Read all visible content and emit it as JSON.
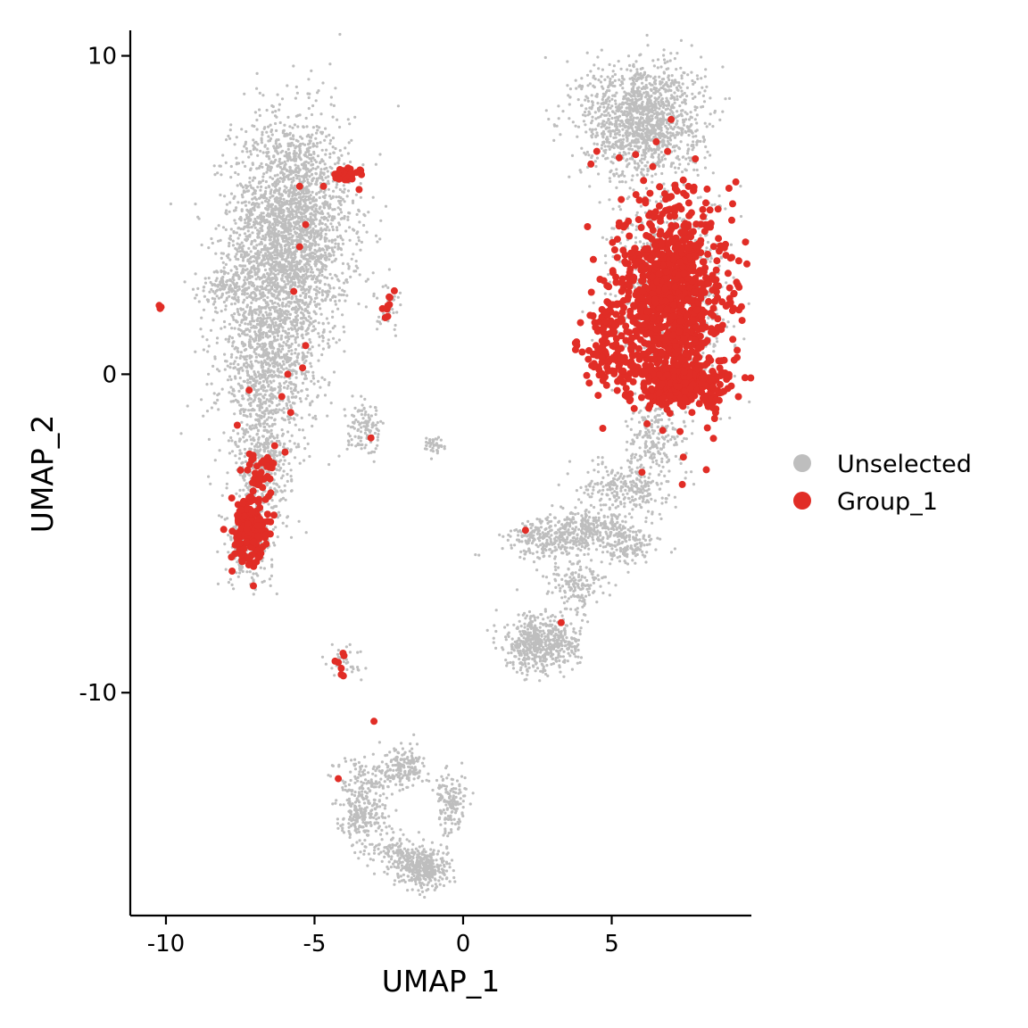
{
  "chart_data": {
    "type": "scatter",
    "xlabel": "UMAP_1",
    "ylabel": "UMAP_2",
    "xlim": [
      -11.2,
      9.7
    ],
    "ylim": [
      -17.0,
      10.8
    ],
    "xticks": [
      -10,
      -5,
      0,
      5
    ],
    "xtick_labels": [
      "-10",
      "-5",
      "0",
      "5"
    ],
    "yticks": [
      10,
      0,
      -10
    ],
    "ytick_labels": [
      "10",
      "0",
      "-10"
    ],
    "grid": false,
    "legend_position": "right",
    "series": [
      {
        "name": "Unselected",
        "color": "#BEBEBE",
        "clusters": [
          {
            "cx": -5.8,
            "cy": 4.5,
            "sx": 1.0,
            "sy": 1.8,
            "n": 2600
          },
          {
            "cx": -6.6,
            "cy": 0.5,
            "sx": 0.8,
            "sy": 1.6,
            "n": 1100
          },
          {
            "cx": -6.8,
            "cy": -3.0,
            "sx": 0.5,
            "sy": 1.2,
            "n": 400
          },
          {
            "cx": -7.2,
            "cy": -5.4,
            "sx": 0.4,
            "sy": 0.6,
            "n": 200
          },
          {
            "cx": -7.9,
            "cy": 2.8,
            "sx": 0.5,
            "sy": 0.3,
            "n": 120
          },
          {
            "cx": 6.0,
            "cy": 8.0,
            "sx": 1.0,
            "sy": 0.9,
            "n": 1400
          },
          {
            "cx": 7.0,
            "cy": 2.5,
            "sx": 1.0,
            "sy": 1.6,
            "n": 800
          },
          {
            "cx": 6.5,
            "cy": -2.0,
            "sx": 0.5,
            "sy": 0.6,
            "n": 200
          },
          {
            "cx": 5.5,
            "cy": -3.5,
            "sx": 0.7,
            "sy": 0.4,
            "n": 250
          },
          {
            "cx": 4.4,
            "cy": -4.8,
            "sx": 0.9,
            "sy": 0.3,
            "n": 300
          },
          {
            "cx": 3.0,
            "cy": -5.2,
            "sx": 0.8,
            "sy": 0.3,
            "n": 250
          },
          {
            "cx": 5.6,
            "cy": -5.5,
            "sx": 0.5,
            "sy": 0.25,
            "n": 120
          },
          {
            "cx": 3.8,
            "cy": -6.6,
            "sx": 0.5,
            "sy": 0.4,
            "n": 150
          },
          {
            "cx": 2.4,
            "cy": -8.5,
            "sx": 0.5,
            "sy": 0.45,
            "n": 450
          },
          {
            "cx": 3.5,
            "cy": -8.5,
            "sx": 0.4,
            "sy": 0.3,
            "n": 100
          },
          {
            "cx": -3.3,
            "cy": -1.8,
            "sx": 0.3,
            "sy": 0.4,
            "n": 120
          },
          {
            "cx": -2.5,
            "cy": 2.2,
            "sx": 0.2,
            "sy": 0.4,
            "n": 40
          },
          {
            "cx": -1.0,
            "cy": -2.2,
            "sx": 0.2,
            "sy": 0.15,
            "n": 40
          },
          {
            "cx": -2.8,
            "cy": -12.5,
            "sx": 0.8,
            "sy": 0.3,
            "n": 150
          },
          {
            "cx": -1.9,
            "cy": -12.3,
            "sx": 0.3,
            "sy": 0.3,
            "n": 100
          },
          {
            "cx": -3.4,
            "cy": -13.8,
            "sx": 0.4,
            "sy": 0.5,
            "n": 250
          },
          {
            "cx": -1.3,
            "cy": -15.5,
            "sx": 0.4,
            "sy": 0.3,
            "n": 350
          },
          {
            "cx": -0.4,
            "cy": -13.5,
            "sx": 0.25,
            "sy": 0.5,
            "n": 150
          },
          {
            "cx": -2.2,
            "cy": -15.0,
            "sx": 0.5,
            "sy": 0.3,
            "n": 120
          },
          {
            "cx": -4.0,
            "cy": -9.0,
            "sx": 0.3,
            "sy": 0.3,
            "n": 40
          }
        ]
      },
      {
        "name": "Group_1",
        "color": "#E12D26",
        "clusters": [
          {
            "cx": 7.0,
            "cy": 2.5,
            "sx": 0.9,
            "sy": 1.5,
            "n": 950
          },
          {
            "cx": 7.4,
            "cy": -0.3,
            "sx": 0.9,
            "sy": 0.35,
            "n": 300
          },
          {
            "cx": 5.0,
            "cy": 0.5,
            "sx": 0.5,
            "sy": 0.5,
            "n": 90
          },
          {
            "cx": 4.8,
            "cy": 1.6,
            "sx": 0.4,
            "sy": 0.3,
            "n": 40
          },
          {
            "cx": -7.2,
            "cy": -4.9,
            "sx": 0.3,
            "sy": 0.6,
            "n": 180
          },
          {
            "cx": -6.8,
            "cy": -3.0,
            "sx": 0.3,
            "sy": 0.4,
            "n": 35
          },
          {
            "cx": -3.9,
            "cy": 6.3,
            "sx": 0.2,
            "sy": 0.1,
            "n": 30
          },
          {
            "cx": -2.5,
            "cy": 2.2,
            "sx": 0.12,
            "sy": 0.3,
            "n": 10
          },
          {
            "cx": -4.1,
            "cy": -9.0,
            "sx": 0.1,
            "sy": 0.3,
            "n": 7
          },
          {
            "cx": -10.2,
            "cy": 2.1,
            "sx": 0.05,
            "sy": 0.03,
            "n": 3
          }
        ],
        "points": [
          [
            -5.5,
            5.9
          ],
          [
            -5.3,
            4.7
          ],
          [
            -5.5,
            4.0
          ],
          [
            -5.7,
            2.6
          ],
          [
            -5.3,
            0.9
          ],
          [
            -5.4,
            0.2
          ],
          [
            -5.9,
            0.0
          ],
          [
            -6.1,
            -0.7
          ],
          [
            -5.8,
            -1.2
          ],
          [
            -7.2,
            -0.5
          ],
          [
            -7.6,
            -1.6
          ],
          [
            -4.2,
            -12.7
          ],
          [
            -3.0,
            -10.9
          ],
          [
            -3.1,
            -2.0
          ],
          [
            4.5,
            7.0
          ],
          [
            4.3,
            6.6
          ],
          [
            6.5,
            7.3
          ],
          [
            7.0,
            8.0
          ],
          [
            2.1,
            -4.9
          ],
          [
            3.3,
            -7.8
          ],
          [
            4.7,
            -1.7
          ],
          [
            7.3,
            -1.8
          ],
          [
            7.7,
            -1.2
          ],
          [
            -3.5,
            5.8
          ],
          [
            -4.7,
            5.9
          ]
        ]
      }
    ]
  }
}
